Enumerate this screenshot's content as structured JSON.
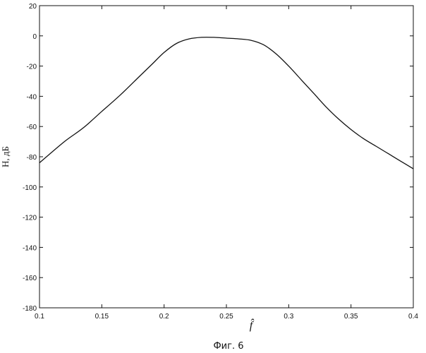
{
  "figure_caption": "Фиг. 6",
  "chart_data": {
    "type": "line",
    "xlabel": "f̂",
    "ylabel": "H, дБ",
    "xlim": [
      0.1,
      0.4
    ],
    "ylim": [
      -180,
      20
    ],
    "grid": false,
    "x_ticks": [
      "0.1",
      "0.15",
      "0.2",
      "0.25",
      "0.3",
      "0.35",
      "0.4"
    ],
    "y_ticks": [
      "20",
      "0",
      "-20",
      "-40",
      "-60",
      "-80",
      "-100",
      "-120",
      "-140",
      "-160",
      "-180"
    ],
    "series": [
      {
        "x": [
          0.1,
          0.12,
          0.135,
          0.15,
          0.165,
          0.18,
          0.19,
          0.2,
          0.21,
          0.22,
          0.23,
          0.24,
          0.25,
          0.26,
          0.27,
          0.28,
          0.29,
          0.3,
          0.31,
          0.32,
          0.33,
          0.34,
          0.35,
          0.36,
          0.37,
          0.38,
          0.39,
          0.4
        ],
        "y": [
          -84,
          -70,
          -61,
          -50,
          -39,
          -27,
          -19,
          -11,
          -5,
          -2,
          -1,
          -1,
          -1.5,
          -2,
          -3,
          -6,
          -12,
          -20,
          -29,
          -38,
          -47,
          -55,
          -62,
          -68,
          -73,
          -78,
          -83,
          -88
        ]
      }
    ]
  }
}
